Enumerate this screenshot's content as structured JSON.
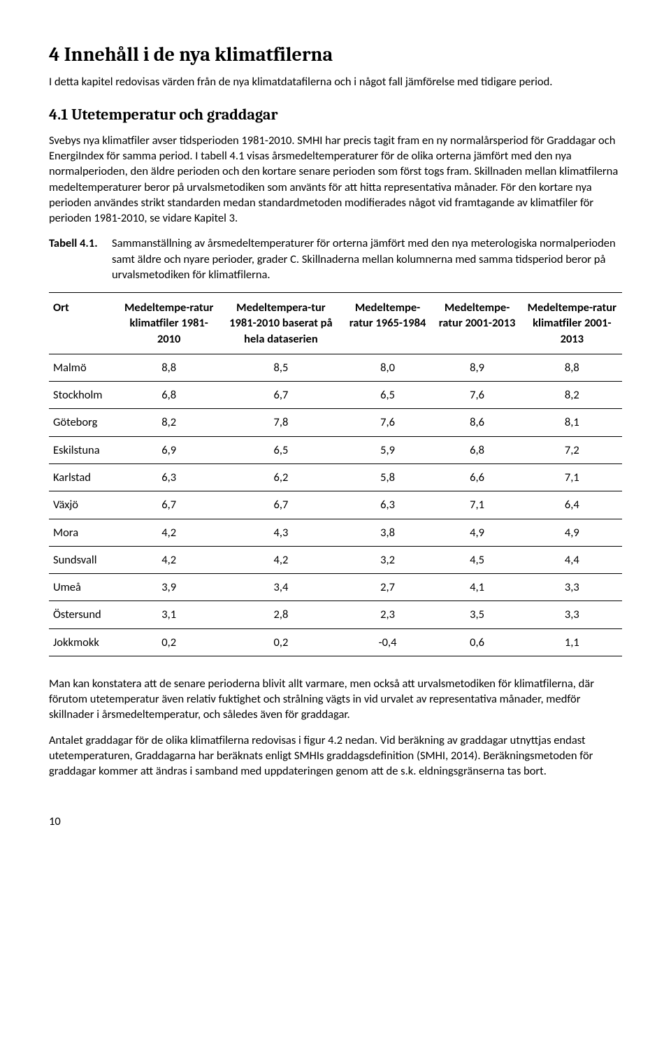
{
  "heading1": "4  Innehåll i de nya klimatfilerna",
  "intro": "I detta kapitel redovisas värden från de nya klimatdatafilerna och i något fall jämförelse med tidigare period.",
  "heading2": "4.1  Utetemperatur och graddagar",
  "para1": "Svebys nya klimatfiler avser tidsperioden 1981-2010. SMHI har precis tagit fram en ny normalårsperiod för Graddagar och EnergiIndex för samma period. I tabell 4.1 visas årsmedeltemperaturer för de olika orterna jämfört med den nya normalperioden, den äldre perioden och den kortare senare perioden som först togs fram. Skillnaden mellan klimatfilerna medeltemperaturer beror på urvalsmetodiken som använts för att hitta representativa månader. För den kortare nya perioden användes strikt standarden medan standardmetoden modifierades något vid framtagande av klimatfiler för perioden 1981-2010, se vidare Kapitel 3.",
  "tableCaption": {
    "label": "Tabell 4.1.",
    "text": "Sammanställning av årsmedeltemperaturer för orterna jämfört med den nya meterologiska normalperioden samt äldre och nyare perioder, grader C. Skillnaderna mellan kolumnerna med samma tidsperiod beror på urvalsmetodiken för klimatfilerna."
  },
  "table": {
    "headers": [
      "Ort",
      "Medeltempe-ratur klimatfiler 1981-2010",
      "Medeltempera-tur 1981-2010 baserat på hela dataserien",
      "Medeltempe-ratur 1965-1984",
      "Medeltempe-ratur 2001-2013",
      "Medeltempe-ratur klimatfiler 2001-2013"
    ],
    "rows": [
      {
        "ort": "Malmö",
        "c1": "8,8",
        "c2": "8,5",
        "c3": "8,0",
        "c4": "8,9",
        "c5": "8,8"
      },
      {
        "ort": "Stockholm",
        "c1": "6,8",
        "c2": "6,7",
        "c3": "6,5",
        "c4": "7,6",
        "c5": "8,2"
      },
      {
        "ort": "Göteborg",
        "c1": "8,2",
        "c2": "7,8",
        "c3": "7,6",
        "c4": "8,6",
        "c5": "8,1"
      },
      {
        "ort": "Eskilstuna",
        "c1": "6,9",
        "c2": "6,5",
        "c3": "5,9",
        "c4": "6,8",
        "c5": "7,2"
      },
      {
        "ort": "Karlstad",
        "c1": "6,3",
        "c2": "6,2",
        "c3": "5,8",
        "c4": "6,6",
        "c5": "7,1"
      },
      {
        "ort": "Växjö",
        "c1": "6,7",
        "c2": "6,7",
        "c3": "6,3",
        "c4": "7,1",
        "c5": "6,4"
      },
      {
        "ort": "Mora",
        "c1": "4,2",
        "c2": "4,3",
        "c3": "3,8",
        "c4": "4,9",
        "c5": "4,9"
      },
      {
        "ort": "Sundsvall",
        "c1": "4,2",
        "c2": "4,2",
        "c3": "3,2",
        "c4": "4,5",
        "c5": "4,4"
      },
      {
        "ort": "Umeå",
        "c1": "3,9",
        "c2": "3,4",
        "c3": "2,7",
        "c4": "4,1",
        "c5": "3,3"
      },
      {
        "ort": "Östersund",
        "c1": "3,1",
        "c2": "2,8",
        "c3": "2,3",
        "c4": "3,5",
        "c5": "3,3"
      },
      {
        "ort": "Jokkmokk",
        "c1": "0,2",
        "c2": "0,2",
        "c3": "-0,4",
        "c4": "0,6",
        "c5": "1,1"
      }
    ]
  },
  "para2": "Man kan konstatera att de senare perioderna blivit allt varmare, men också att urvalsmetodiken för klimatfilerna, där förutom utetemperatur även relativ fuktighet och strålning vägts in vid urvalet av representativa månader, medför skillnader i årsmedeltemperatur, och således även för graddagar.",
  "para3": "Antalet graddagar för de olika klimatfilerna redovisas i figur 4.2 nedan. Vid beräkning av graddagar utnyttjas endast utetemperaturen, Graddagarna har beräknats enligt SMHIs graddagsdefinition (SMHI, 2014). Beräkningsmetoden för graddagar kommer att ändras i samband med uppdateringen genom att de s.k. eldningsgränserna tas bort.",
  "pageNumber": "10"
}
